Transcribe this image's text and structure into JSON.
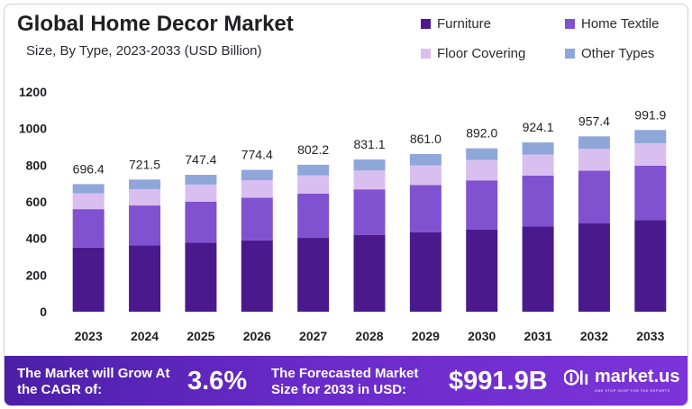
{
  "title": "Global Home Decor Market",
  "subtitle": "Size, By Type, 2023-2033 (USD Billion)",
  "colors": {
    "furniture": "#4a1a8c",
    "home_textile": "#8052d0",
    "floor_covering": "#d9bff0",
    "other_types": "#8fa6d9",
    "footer_start": "#4b1fa8",
    "footer_end": "#7c33d9"
  },
  "chart_data": {
    "type": "bar",
    "stacked": true,
    "categories": [
      "2023",
      "2024",
      "2025",
      "2026",
      "2027",
      "2028",
      "2029",
      "2030",
      "2031",
      "2032",
      "2033"
    ],
    "series": [
      {
        "name": "Furniture",
        "color": "#4a1a8c",
        "values": [
          350,
          363,
          376,
          389,
          403,
          418,
          433,
          449,
          465,
          482,
          499
        ]
      },
      {
        "name": "Home Textile",
        "color": "#8052d0",
        "values": [
          210,
          217,
          225,
          233,
          242,
          250,
          259,
          268,
          278,
          288,
          298
        ]
      },
      {
        "name": "Floor Covering",
        "color": "#d9bff0",
        "values": [
          86,
          89,
          93,
          96,
          99,
          103,
          107,
          111,
          115,
          119,
          123
        ]
      },
      {
        "name": "Other Types",
        "color": "#8fa6d9",
        "values": [
          50.4,
          52.5,
          53.4,
          56.4,
          58.2,
          60.1,
          62.0,
          64.0,
          66.1,
          68.4,
          71.9
        ]
      }
    ],
    "totals": [
      "696.4",
      "721.5",
      "747.4",
      "774.4",
      "802.2",
      "831.1",
      "861.0",
      "892.0",
      "924.1",
      "957.4",
      "991.9"
    ],
    "y_ticks": [
      "0",
      "200",
      "400",
      "600",
      "800",
      "1000",
      "1200"
    ],
    "ylim": [
      0,
      1200
    ],
    "grid": false,
    "legend_position": "top-right"
  },
  "legend": {
    "items": [
      {
        "label": "Furniture",
        "color": "#4a1a8c"
      },
      {
        "label": "Home Textile",
        "color": "#8052d0"
      },
      {
        "label": "Floor Covering",
        "color": "#d9bff0"
      },
      {
        "label": "Other Types",
        "color": "#8fa6d9"
      }
    ]
  },
  "footer": {
    "cagr_label": "The Market will Grow At the CAGR of:",
    "cagr_value": "3.6%",
    "size_label": "The Forecasted Market Size for 2033 in USD:",
    "size_value": "$991.9B",
    "brand_name": "market.us",
    "brand_tagline": "ONE STOP SHOP FOR THE REPORTS",
    "brand_icon": "market-us-logo-icon"
  }
}
